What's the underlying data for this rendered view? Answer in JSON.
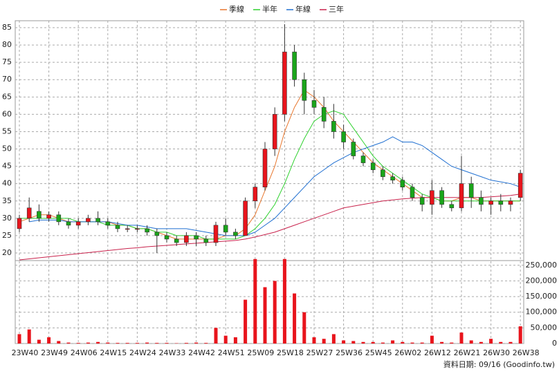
{
  "chart_data": {
    "type": "candlestick",
    "categories": [
      "23W40",
      null,
      null,
      "23W49",
      null,
      null,
      "24W06",
      null,
      null,
      "24W15",
      null,
      null,
      "24W24",
      null,
      null,
      "24W33",
      null,
      null,
      "24W42",
      null,
      null,
      "24W51",
      null,
      null,
      "25W09",
      null,
      null,
      "25W18",
      null,
      null,
      "25W27",
      null,
      null,
      "25W36",
      null,
      null,
      "25W45",
      null,
      null,
      "26W02",
      null,
      null,
      "26W12",
      null,
      null,
      "26W21",
      null,
      null,
      "26W30",
      null,
      null,
      "26W38"
    ],
    "open": [
      27,
      30,
      32,
      30,
      31,
      29,
      28,
      29,
      30,
      29,
      28,
      27,
      27,
      27,
      26,
      25,
      24,
      23,
      25,
      24,
      23,
      28,
      26,
      25,
      35,
      39,
      50,
      60,
      78,
      70,
      64,
      62,
      58,
      55,
      52,
      48,
      46,
      44,
      42,
      41,
      39,
      36,
      34,
      38,
      34,
      33,
      40,
      36,
      34,
      35,
      34,
      36
    ],
    "high": [
      31,
      36,
      34,
      32,
      32,
      30,
      30,
      31,
      32,
      30,
      29,
      28,
      28,
      28,
      27,
      26,
      25,
      26,
      26,
      25,
      29,
      30,
      27,
      36,
      40,
      52,
      62,
      86,
      80,
      72,
      67,
      65,
      63,
      57,
      53,
      49,
      47,
      45,
      43,
      42,
      40,
      37,
      41,
      39,
      35,
      48,
      42,
      38,
      36,
      37,
      36,
      44
    ],
    "low": [
      26,
      29,
      29,
      29,
      28,
      27,
      27,
      28,
      28,
      27,
      26,
      26,
      26,
      25,
      20,
      23,
      22,
      22,
      22,
      22,
      22,
      25,
      24,
      25,
      33,
      38,
      48,
      58,
      68,
      60,
      60,
      56,
      53,
      50,
      47,
      45,
      43,
      41,
      40,
      38,
      35,
      32,
      31,
      33,
      32,
      32,
      33,
      32,
      31,
      32,
      32,
      35
    ],
    "close": [
      30,
      33,
      30,
      31,
      29,
      28,
      29,
      30,
      29,
      28,
      27,
      27,
      27,
      26,
      25,
      24,
      23,
      25,
      24,
      23,
      28,
      26,
      25,
      35,
      39,
      50,
      60,
      78,
      70,
      64,
      62,
      58,
      55,
      52,
      48,
      46,
      44,
      42,
      41,
      39,
      36,
      34,
      38,
      34,
      33,
      40,
      36,
      34,
      35,
      34,
      35,
      43
    ],
    "up_color": "#e8141c",
    "down_color": "#1aa51a",
    "ylim": [
      18,
      87
    ],
    "yticks": [
      20,
      25,
      30,
      35,
      40,
      45,
      50,
      55,
      60,
      65,
      70,
      75,
      80,
      85
    ],
    "grid": true,
    "series": [
      {
        "name": "季線",
        "color": "#e8762c",
        "values": [
          29,
          30,
          31,
          31,
          30,
          29,
          29,
          29,
          29,
          29,
          28,
          28,
          27,
          27,
          26,
          25,
          24,
          24,
          24,
          24,
          24,
          25,
          25,
          27,
          31,
          38,
          45,
          55,
          62,
          67,
          65,
          62,
          58,
          55,
          52,
          49,
          46,
          44,
          42,
          40,
          38,
          36,
          36,
          35,
          35,
          36,
          36,
          35,
          35,
          35,
          35,
          35
        ]
      },
      {
        "name": "半年",
        "color": "#2ed12e",
        "values": [
          30,
          30,
          30,
          30,
          30,
          30,
          29,
          29,
          29,
          28,
          28,
          28,
          27,
          27,
          26,
          26,
          25,
          25,
          25,
          24,
          24,
          24,
          24,
          25,
          27,
          30,
          34,
          40,
          47,
          53,
          58,
          60,
          61,
          60,
          56,
          52,
          48,
          45,
          43,
          41,
          39,
          37,
          36,
          35,
          35,
          35,
          35,
          35,
          35,
          35,
          35,
          35
        ]
      },
      {
        "name": "年線",
        "color": "#1f6fd1",
        "values": [
          null,
          29,
          29.5,
          29.5,
          29.5,
          29,
          29,
          29,
          29,
          29,
          28.5,
          28,
          28,
          27.5,
          27,
          27,
          27,
          27,
          26.5,
          26,
          25.5,
          25,
          25,
          25,
          26,
          28,
          30,
          33,
          36,
          39,
          42,
          44,
          46,
          47.5,
          49,
          50,
          51,
          52,
          53.5,
          52,
          52,
          51,
          49,
          47,
          45,
          44,
          43,
          42,
          41,
          40.5,
          40,
          39
        ]
      },
      {
        "name": "三年",
        "color": "#c8204a",
        "values": [
          18,
          18.3,
          18.6,
          18.9,
          19.2,
          19.5,
          19.8,
          20.1,
          20.4,
          20.7,
          21,
          21.3,
          21.5,
          21.8,
          22,
          22.2,
          22.4,
          22.6,
          22.8,
          23,
          23.2,
          23.4,
          23.6,
          24,
          24.6,
          25.3,
          26,
          27,
          28,
          29,
          30,
          31,
          32,
          33,
          33.5,
          34,
          34.5,
          35,
          35.3,
          35.6,
          35.8,
          36,
          36,
          36,
          36,
          36,
          36,
          36,
          36.2,
          36.4,
          36.6,
          37
        ]
      }
    ],
    "volume": {
      "color": "#e8141c",
      "values": [
        30000,
        45000,
        12000,
        20000,
        8000,
        3000,
        2000,
        3000,
        5000,
        3000,
        2000,
        2000,
        2000,
        3000,
        2000,
        2000,
        1000,
        2000,
        3000,
        2000,
        50000,
        25000,
        20000,
        140000,
        270000,
        180000,
        200000,
        270000,
        160000,
        100000,
        20000,
        15000,
        30000,
        10000,
        8000,
        5000,
        5000,
        3000,
        10000,
        5000,
        3000,
        3000,
        25000,
        5000,
        3000,
        35000,
        10000,
        5000,
        15000,
        5000,
        5000,
        55000
      ],
      "ylim": [
        0,
        265000
      ],
      "yticks": [
        0,
        {
          "value": 50000,
          "label": "50,000"
        },
        {
          "value": 100000,
          "label": "100,000"
        },
        {
          "value": 150000,
          "label": "150,000"
        },
        {
          "value": 200000,
          "label": "200,000"
        },
        {
          "value": 250000,
          "label": "250,000"
        }
      ]
    },
    "footer": "資料日期: 09/16  (Goodinfo.tw)"
  }
}
